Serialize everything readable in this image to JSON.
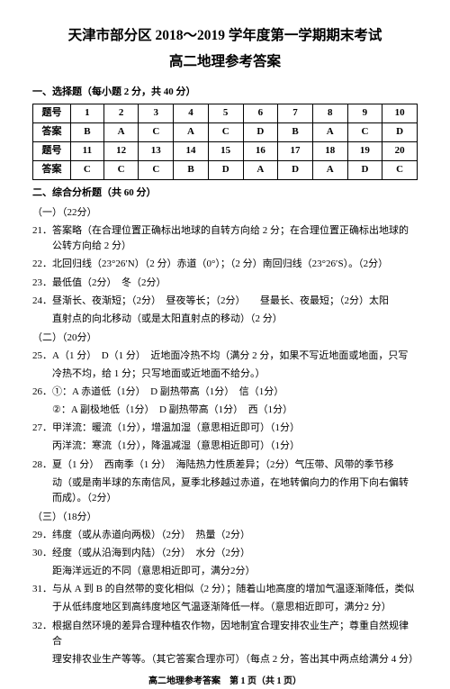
{
  "title1": "天津市部分区 2018～2019 学年度第一学期期末考试",
  "title2": "高二地理参考答案",
  "sec1_head": "一、选择题（每小题 2 分，共 40 分）",
  "table": {
    "r1_label": "题号",
    "r1": [
      "1",
      "2",
      "3",
      "4",
      "5",
      "6",
      "7",
      "8",
      "9",
      "10"
    ],
    "r2_label": "答案",
    "r2": [
      "B",
      "A",
      "C",
      "A",
      "C",
      "D",
      "B",
      "A",
      "C",
      "D"
    ],
    "r3_label": "题号",
    "r3": [
      "11",
      "12",
      "13",
      "14",
      "15",
      "16",
      "17",
      "18",
      "19",
      "20"
    ],
    "r4_label": "答案",
    "r4": [
      "C",
      "C",
      "C",
      "B",
      "D",
      "A",
      "D",
      "A",
      "D",
      "C"
    ]
  },
  "sec2_head": "二、综合分析题（共 60 分）",
  "part1": "（一）（22分）",
  "q21": "21．答案略（在合理位置正确标出地球的自转方向给 2 分；在合理位置正确标出地球的公转方向给 2 分）",
  "q22": "22．北回归线（23°26′N）（2 分）赤道（0°）；（2 分）南回归线（23°26′S）。（2分）",
  "q23": "23．最低值（2分）　冬（2分）",
  "q24a": "24．昼渐长、夜渐短；（2分）　昼夜等长；（2分）　　昼最长、夜最短；（2分）太阳",
  "q24b": "直射点的向北移动（或是太阳直射点的移动）（2 分）",
  "part2": "（二）（20分）",
  "q25a": "25．A（1 分）　D（1 分）　近地面冷热不均（满分 2 分，如果不写近地面或地面，只写",
  "q25b": "冷热不均，给 1 分；只写地面或近地面不给分。）",
  "q26a": "26．①：A 赤道低（1分）　D 副热带高（1分）　信（1分）",
  "q26b": "②：A 副极地低（1分）　D 副热带高（1分）　西（1分）",
  "q27a": "27．甲洋流：暖流（1分），增温加湿（意思相近即可）（1分）",
  "q27b": "丙洋流：寒流（1分），降温减湿（意思相近即可）（1分）",
  "q28a": "28．夏（1 分）　西南季（1 分）　海陆热力性质差异；（2分）气压带、风带的季节移",
  "q28b": "动（或是南半球的东南信风，夏季北移越过赤道，在地转偏向力的作用下向右偏转而成）。（2分）",
  "part3": "（三）（18分）",
  "q29": "29．纬度（或从赤道向两极）（2分）　热量（2分）",
  "q30a": "30．经度（或从沿海到内陆）（2分）　水分（2分）",
  "q30b": "距海洋远近的不同（意思相近即可，满分2分）",
  "q31a": "31．与从 A 到 B 的自然带的变化相似（2 分）；随着山地高度的增加气温逐渐降低，类似",
  "q31b": "于从低纬度地区到高纬度地区气温逐渐降低一样。（意思相近即可，满分2 分）",
  "q32a": "32．根据自然环境的差异合理种植农作物，因地制宜合理安排农业生产；尊重自然规律合",
  "q32b": "理安排农业生产等等。（其它答案合理亦可）（每点 2 分，答出其中两点给满分 4 分）",
  "footer": "高二地理参考答案　第 1 页（共 1 页）"
}
